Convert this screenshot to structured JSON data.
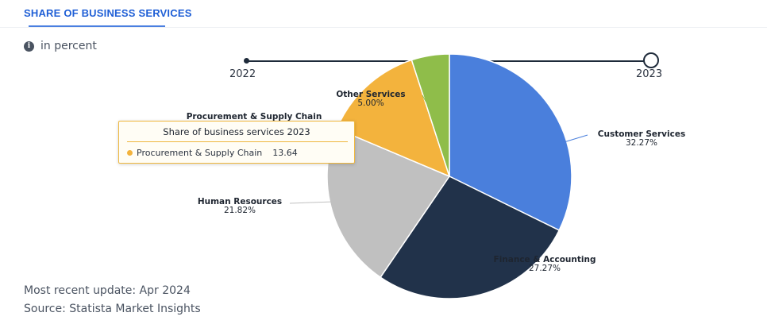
{
  "header": {
    "title": "SHARE OF BUSINESS SERVICES"
  },
  "unit_note": {
    "text": "in percent",
    "icon": "info-icon"
  },
  "timeline": {
    "years": [
      "2022",
      "2023"
    ],
    "selected": "2023"
  },
  "chart_data": {
    "type": "pie",
    "year": "2023",
    "slices": [
      {
        "name": "Customer Services",
        "value": 32.27,
        "label": "32.27%",
        "color": "#4a7fdc"
      },
      {
        "name": "Finance & Accounting",
        "value": 27.27,
        "label": "27.27%",
        "color": "#21324a"
      },
      {
        "name": "Human Resources",
        "value": 21.82,
        "label": "21.82%",
        "color": "#c0c0c0"
      },
      {
        "name": "Procurement & Supply Chain",
        "value": 13.64,
        "label": "13.64%",
        "color": "#f3b33d"
      },
      {
        "name": "Other Services",
        "value": 5.0,
        "label": "5.00%",
        "color": "#8fbd4a"
      }
    ]
  },
  "tooltip": {
    "title": "Share of business services 2023",
    "series_name": "Procurement & Supply Chain",
    "value": "13.64",
    "color": "#f3b33d"
  },
  "footer": {
    "update": "Most recent update: Apr 2024",
    "source": "Source: Statista Market Insights"
  }
}
